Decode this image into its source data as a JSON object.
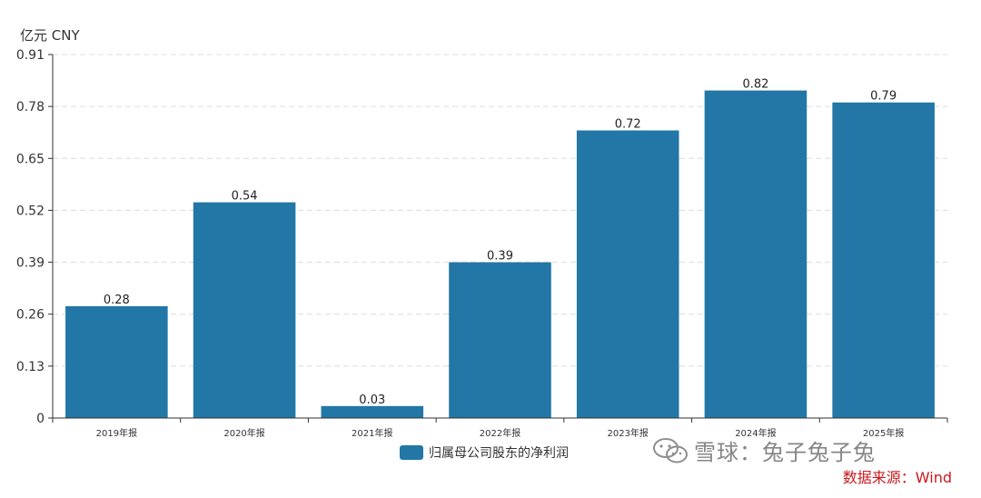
{
  "unit_label": "亿元  CNY",
  "legend": {
    "label": "归属母公司股东的净利润",
    "color": "#2277a6"
  },
  "watermark": {
    "text": "雪球：兔子兔子兔"
  },
  "source": {
    "text": "数据来源：Wind",
    "color": "#c8191d"
  },
  "chart_data": {
    "type": "bar",
    "categories": [
      "2019年报",
      "2020年报",
      "2021年报",
      "2022年报",
      "2023年报",
      "2024年报",
      "2025年报"
    ],
    "series": [
      {
        "name": "归属母公司股东的净利润",
        "values": [
          0.28,
          0.54,
          0.03,
          0.39,
          0.72,
          0.82,
          0.79
        ],
        "color": "#2277a6"
      }
    ],
    "value_labels": [
      "0.28",
      "0.54",
      "0.03",
      "0.39",
      "0.72",
      "0.82",
      "0.79"
    ],
    "y_ticks": [
      "0",
      "0.13",
      "0.26",
      "0.39",
      "0.52",
      "0.65",
      "0.78",
      "0.91"
    ],
    "ylim": [
      0,
      0.91
    ],
    "ylabel": "亿元  CNY",
    "grid": "horizontal dashed"
  }
}
